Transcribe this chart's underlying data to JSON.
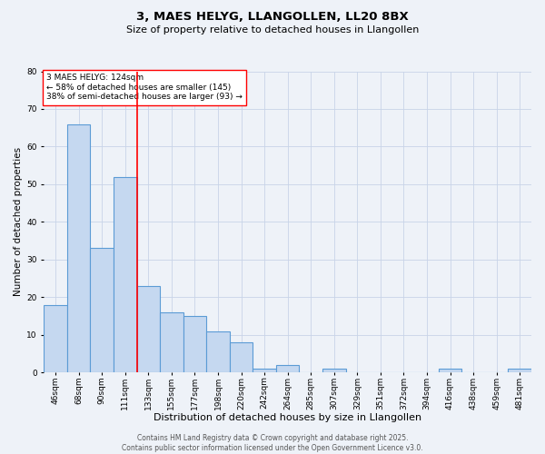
{
  "title": "3, MAES HELYG, LLANGOLLEN, LL20 8BX",
  "subtitle": "Size of property relative to detached houses in Llangollen",
  "xlabel": "Distribution of detached houses by size in Llangollen",
  "ylabel": "Number of detached properties",
  "categories": [
    "46sqm",
    "68sqm",
    "90sqm",
    "111sqm",
    "133sqm",
    "155sqm",
    "177sqm",
    "198sqm",
    "220sqm",
    "242sqm",
    "264sqm",
    "285sqm",
    "307sqm",
    "329sqm",
    "351sqm",
    "372sqm",
    "394sqm",
    "416sqm",
    "438sqm",
    "459sqm",
    "481sqm"
  ],
  "values": [
    18,
    66,
    33,
    52,
    23,
    16,
    15,
    11,
    8,
    1,
    2,
    0,
    1,
    0,
    0,
    0,
    0,
    1,
    0,
    0,
    1
  ],
  "bar_color": "#c5d8f0",
  "bar_edge_color": "#5b9bd5",
  "bar_linewidth": 0.8,
  "vline_index": 3,
  "vline_color": "red",
  "vline_linewidth": 1.2,
  "annotation_text": "3 MAES HELYG: 124sqm\n← 58% of detached houses are smaller (145)\n38% of semi-detached houses are larger (93) →",
  "annotation_box_color": "white",
  "annotation_box_edge": "red",
  "annotation_fontsize": 6.5,
  "grid_color": "#c8d4e8",
  "background_color": "#eef2f8",
  "ylim": [
    0,
    80
  ],
  "yticks": [
    0,
    10,
    20,
    30,
    40,
    50,
    60,
    70,
    80
  ],
  "title_fontsize": 9.5,
  "subtitle_fontsize": 8,
  "xlabel_fontsize": 8,
  "ylabel_fontsize": 7.5,
  "tick_fontsize": 6.5,
  "footer_text": "Contains HM Land Registry data © Crown copyright and database right 2025.\nContains public sector information licensed under the Open Government Licence v3.0.",
  "footer_fontsize": 5.5
}
